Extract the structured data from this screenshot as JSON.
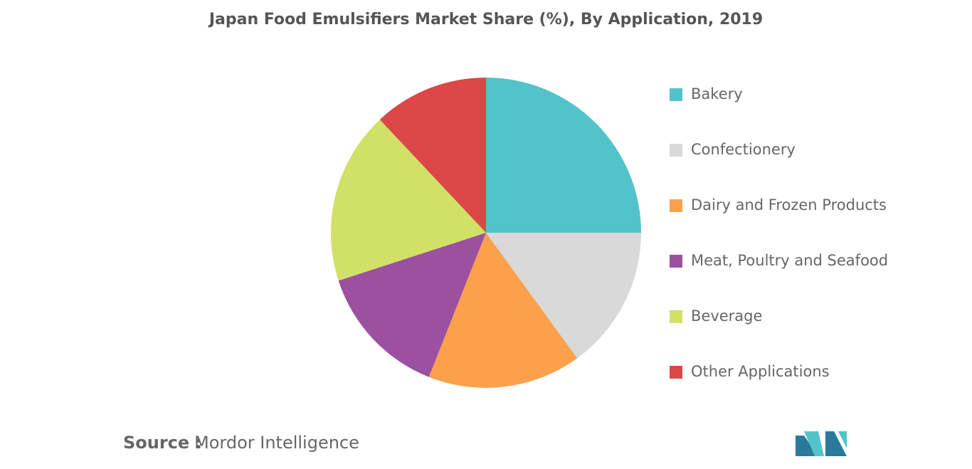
{
  "chart_data": {
    "type": "pie",
    "title": "Japan Food Emulsifiers Market Share (%), By Application, 2019",
    "categories": [
      "Bakery",
      "Confectionery",
      "Dairy and Frozen Products",
      "Meat, Poultry and Seafood",
      "Beverage",
      "Other Applications"
    ],
    "values": [
      25,
      15,
      16,
      14,
      18,
      12
    ],
    "colors": [
      "#52c3ca",
      "#d9d9d9",
      "#fba04b",
      "#9b51a0",
      "#d1e067",
      "#dc4747"
    ],
    "legend": "right",
    "source_label": "Source :",
    "source": "Mordor Intelligence"
  }
}
